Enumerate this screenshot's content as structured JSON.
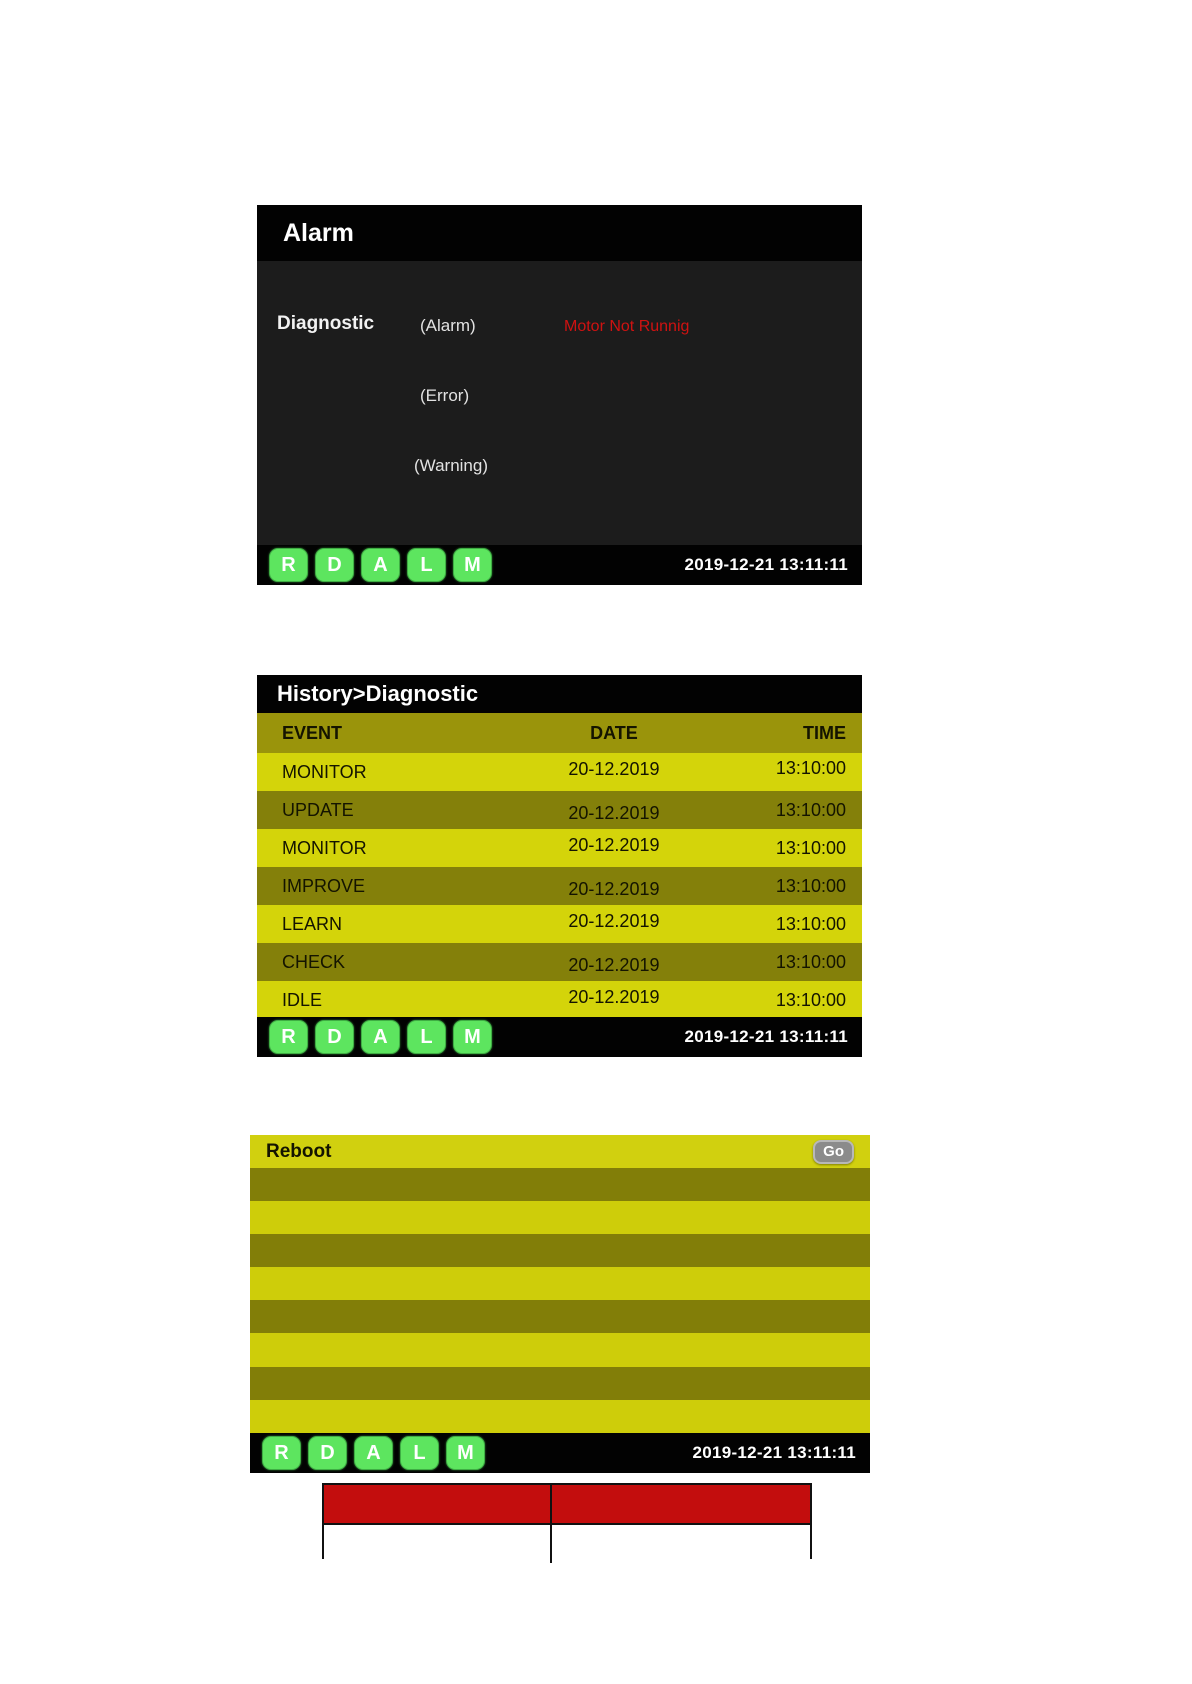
{
  "shared": {
    "nav_buttons": [
      "R",
      "D",
      "A",
      "L",
      "M"
    ],
    "timestamp": "2019-12-21 13:11:11",
    "colors": {
      "nav_button_green": "#5de55f",
      "screen_black": "#020202",
      "screen_body_dark": "#1c1c1c",
      "row_yellow": "#d4d40a",
      "row_olive": "#84800a",
      "alarm_red": "#cf1211",
      "legend_header_red": "#c30d0d"
    }
  },
  "alarm_screen": {
    "title": "Alarm",
    "diagnostic_label": "Diagnostic",
    "alarm_label": "(Alarm)",
    "error_label": "(Error)",
    "warning_label": "(Warning)",
    "alarm_message": "Motor Not Runnig"
  },
  "history_screen": {
    "title": "History>Diagnostic",
    "columns": {
      "event": "EVENT",
      "date": "DATE",
      "time": "TIME"
    },
    "rows": [
      {
        "event": "MONITOR",
        "date": "20-12.2019",
        "time": "13:10:00"
      },
      {
        "event": "UPDATE",
        "date": "20-12.2019",
        "time": "13:10:00"
      },
      {
        "event": "MONITOR",
        "date": "20-12.2019",
        "time": "13:10:00"
      },
      {
        "event": "IMPROVE",
        "date": "20-12.2019",
        "time": "13:10:00"
      },
      {
        "event": "LEARN",
        "date": "20-12.2019",
        "time": "13:10:00"
      },
      {
        "event": "CHECK",
        "date": "20-12.2019",
        "time": "13:10:00"
      },
      {
        "event": "IDLE",
        "date": "20-12.2019",
        "time": "13:10:00"
      }
    ]
  },
  "reboot_screen": {
    "title": "Reboot",
    "go_label": "Go"
  },
  "legend_table": {
    "header_cells": [
      "",
      ""
    ],
    "body_cells": [
      "",
      ""
    ]
  }
}
